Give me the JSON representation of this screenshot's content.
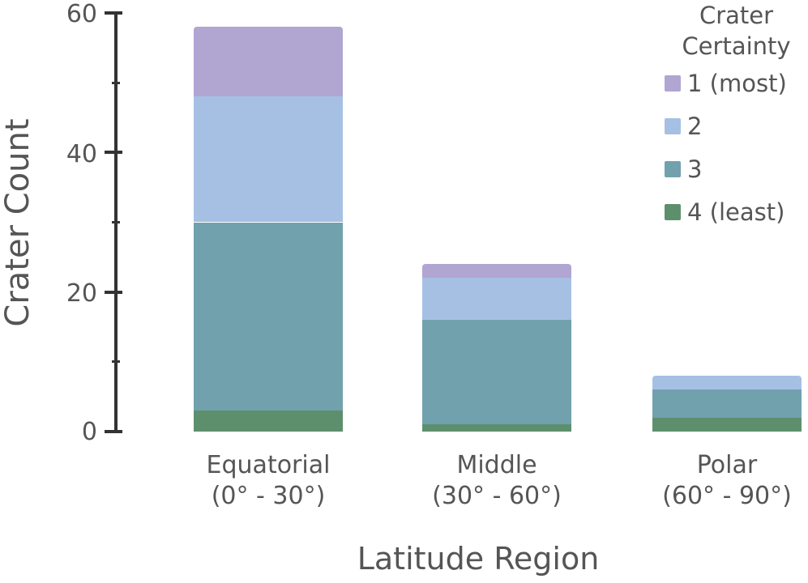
{
  "chart_data": {
    "type": "bar",
    "stacked": true,
    "title": "",
    "xlabel": "Latitude Region",
    "ylabel": "Crater Count",
    "ylim": [
      0,
      60
    ],
    "yticks": [
      0,
      20,
      40,
      60
    ],
    "categories": [
      "Equatorial (0° - 30°)",
      "Middle (30° - 60°)",
      "Polar (60° - 90°)"
    ],
    "category_lines": [
      [
        "Equatorial",
        "(0° - 30°)"
      ],
      [
        "Middle",
        "(30° - 60°)"
      ],
      [
        "Polar",
        "(60° - 90°)"
      ]
    ],
    "series": [
      {
        "name": "4 (least)",
        "color": "#5e8f6d",
        "values": [
          3,
          1,
          2
        ]
      },
      {
        "name": "3",
        "color": "#71a1ad",
        "values": [
          27,
          15,
          4
        ]
      },
      {
        "name": "2",
        "color": "#a6c0e4",
        "values": [
          18,
          6,
          2
        ]
      },
      {
        "name": "1 (most)",
        "color": "#b1a5d2",
        "values": [
          10,
          2,
          0
        ]
      }
    ],
    "totals": [
      58,
      24,
      8
    ],
    "legend": {
      "title_lines": [
        "Crater",
        "Certainty"
      ],
      "position": "top-right",
      "order": [
        "1 (most)",
        "2",
        "3",
        "4 (least)"
      ]
    },
    "grid": false
  },
  "labels": {
    "y_title": "Crater Count",
    "x_title": "Latitude Region",
    "legend_title_1": "Crater",
    "legend_title_2": "Certainty",
    "ticks": [
      "0",
      "20",
      "40",
      "60"
    ],
    "cat0_l1": "Equatorial",
    "cat0_l2": "(0° - 30°)",
    "cat1_l1": "Middle",
    "cat1_l2": "(30° - 60°)",
    "cat2_l1": "Polar",
    "cat2_l2": "(60° - 90°)",
    "leg0": "1 (most)",
    "leg1": "2",
    "leg2": "3",
    "leg3": "4 (least)"
  }
}
